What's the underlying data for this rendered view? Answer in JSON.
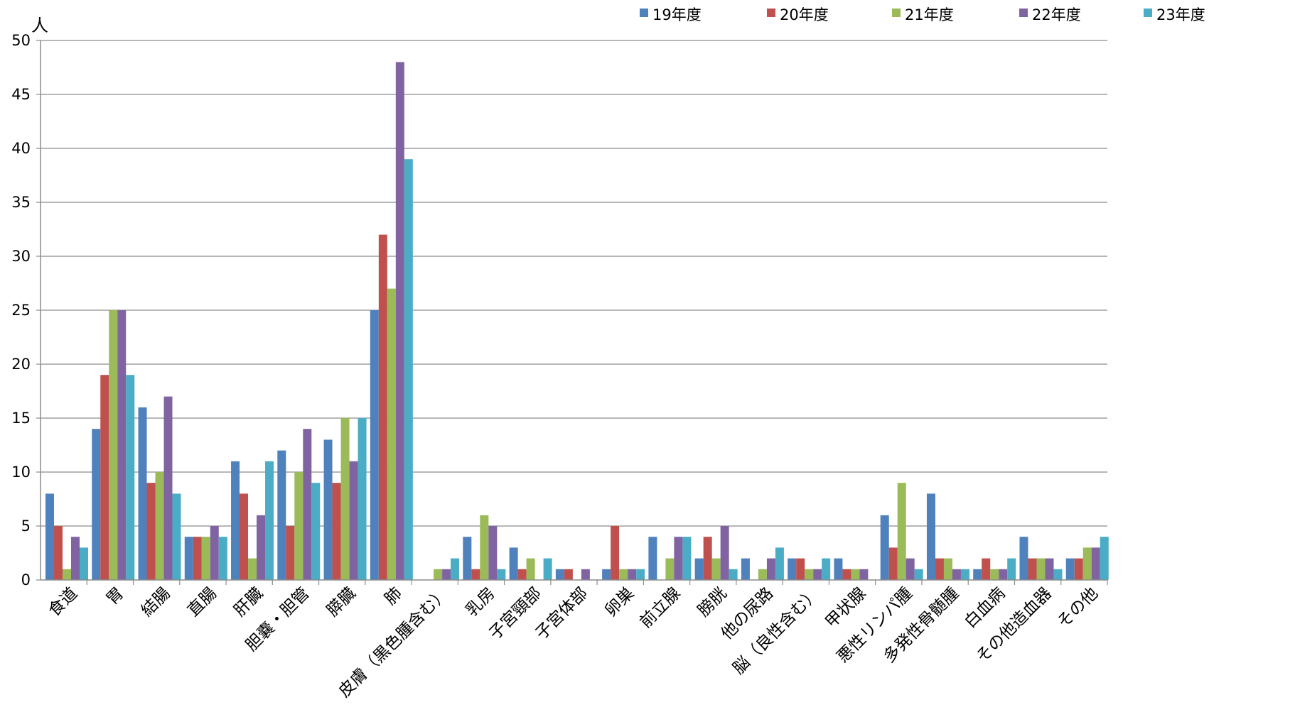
{
  "chart_data": {
    "type": "bar",
    "title": "",
    "xlabel": "",
    "ylabel": "人",
    "ylim": [
      0,
      50
    ],
    "yticks": [
      0,
      5,
      10,
      15,
      20,
      25,
      30,
      35,
      40,
      45,
      50
    ],
    "grid": true,
    "legend_position": "top",
    "categories": [
      "食道",
      "胃",
      "結腸",
      "直腸",
      "肝臓",
      "胆嚢・胆管",
      "膵臓",
      "肺",
      "皮膚（黒色腫含む）",
      "乳房",
      "子宮頸部",
      "子宮体部",
      "卵巣",
      "前立腺",
      "膀胱",
      "他の尿路",
      "脳（良性含む）",
      "甲状腺",
      "悪性リンパ腫",
      "多発性骨髄腫",
      "白血病",
      "その他造血器",
      "その他"
    ],
    "series": [
      {
        "name": "19年度",
        "color": "#4F81BD",
        "values": [
          8,
          14,
          16,
          4,
          11,
          12,
          13,
          25,
          0,
          4,
          3,
          1,
          1,
          4,
          2,
          2,
          2,
          2,
          6,
          8,
          1,
          4,
          2
        ]
      },
      {
        "name": "20年度",
        "color": "#C0504D",
        "values": [
          5,
          19,
          9,
          4,
          8,
          5,
          9,
          32,
          0,
          1,
          1,
          1,
          5,
          0,
          4,
          0,
          2,
          1,
          3,
          2,
          2,
          2,
          2
        ]
      },
      {
        "name": "21年度",
        "color": "#9BBB59",
        "values": [
          1,
          25,
          10,
          4,
          2,
          10,
          15,
          27,
          1,
          6,
          2,
          0,
          1,
          2,
          2,
          1,
          1,
          1,
          9,
          2,
          1,
          2,
          3
        ]
      },
      {
        "name": "22年度",
        "color": "#8064A2",
        "values": [
          4,
          25,
          17,
          5,
          6,
          14,
          11,
          48,
          1,
          5,
          0,
          1,
          1,
          4,
          5,
          2,
          1,
          1,
          2,
          1,
          1,
          2,
          3
        ]
      },
      {
        "name": "23年度",
        "color": "#4BACC6",
        "values": [
          3,
          19,
          8,
          4,
          11,
          9,
          15,
          39,
          2,
          1,
          2,
          0,
          1,
          4,
          1,
          3,
          2,
          0,
          1,
          1,
          2,
          1,
          4
        ]
      }
    ]
  }
}
